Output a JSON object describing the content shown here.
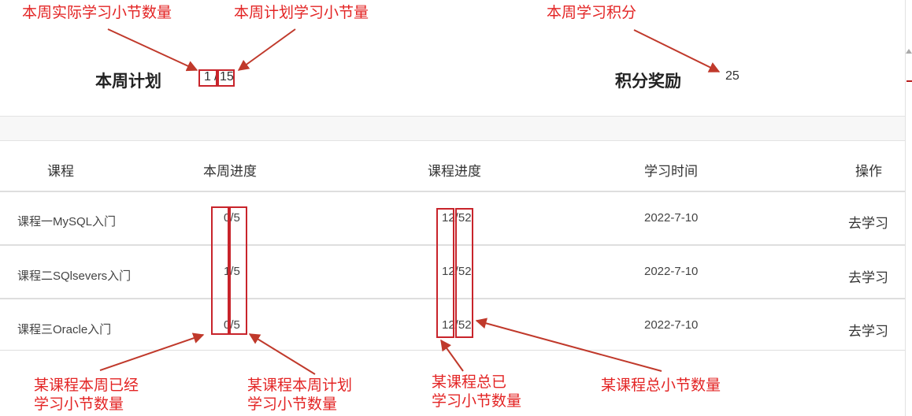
{
  "summary": {
    "plan_title": "本周计划",
    "actual_count": "1",
    "plan_separator": "/",
    "planned_count": "15",
    "reward_title": "积分奖励",
    "points": "25"
  },
  "annotations": {
    "actual": "本周实际学习小节数量",
    "planned": "本周计划学习小节量",
    "points": "本周学习积分",
    "row_done_line1": "某课程本周已经",
    "row_done_line2": "学习小节数量",
    "row_plan_line1": "某课程本周计划",
    "row_plan_line2": "学习小节数量",
    "total_done_line1": "某课程总已",
    "total_done_line2": "学习小节数量",
    "total_all": "某课程总小节数量"
  },
  "table": {
    "headers": [
      "课程",
      "本周进度",
      "课程进度",
      "学习时间",
      "操作"
    ],
    "rows": [
      {
        "course": "课程一MySQL入门",
        "week": "0/5",
        "progress": "12/52",
        "time": "2022-7-10",
        "action": "去学习"
      },
      {
        "course": "课程二SQlsevers入门",
        "week": "1/5",
        "progress": "12/52",
        "time": "2022-7-10",
        "action": "去学习"
      },
      {
        "course": "课程三Oracle入门",
        "week": "0/5",
        "progress": "12/52",
        "time": "2022-7-10",
        "action": "去学习"
      }
    ]
  },
  "colors": {
    "annotation": "#e32424",
    "highlight_box": "#c8242b",
    "arrow": "#c0392b"
  }
}
